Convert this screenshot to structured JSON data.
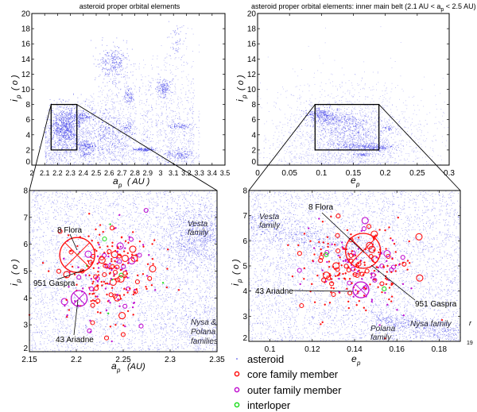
{
  "chart_data": [
    {
      "type": "scatter",
      "title": "asteroid proper orbital elements",
      "xlabel": "a_p ( AU )",
      "xlabel_main": "a",
      "xlabel_sub": "p",
      "xlabel_unit": "( AU )",
      "ylabel_main": "i",
      "ylabel_sub": "p",
      "ylabel_unit": "( o )",
      "xlim": [
        2,
        3.5
      ],
      "ylim": [
        0,
        20
      ],
      "xticks": [
        "2",
        "2.1",
        "2.2",
        "2.3",
        "2.4",
        "2.5",
        "2.6",
        "2.7",
        "2.8",
        "2.9",
        "3",
        "3.1",
        "3.2",
        "3.3",
        "3.4",
        "3.5"
      ],
      "yticks": [
        "0",
        "2",
        "4",
        "6",
        "8",
        "10",
        "12",
        "14",
        "16",
        "18",
        "20"
      ],
      "zoom_box": {
        "x": [
          2.15,
          2.35
        ],
        "y": [
          2,
          8
        ]
      },
      "series_color": "#2a2ae6"
    },
    {
      "type": "scatter",
      "title": "asteroid proper orbital elements: inner main belt (2.1 AU < a",
      "title_sub": "p",
      "title_end": " < 2.5 AU)",
      "xlabel_main": "e",
      "xlabel_sub": "p",
      "ylabel_main": "i",
      "ylabel_sub": "p",
      "ylabel_unit": "( o )",
      "xlim": [
        0,
        0.3
      ],
      "ylim": [
        0,
        20
      ],
      "xticks": [
        "0",
        "0.05",
        "0.1",
        "0.15",
        "0.2",
        "0.25",
        "0.3"
      ],
      "yticks": [
        "0",
        "2",
        "4",
        "6",
        "8",
        "10",
        "12",
        "14",
        "16",
        "18",
        "20"
      ],
      "zoom_box": {
        "x": [
          0.09,
          0.19
        ],
        "y": [
          2,
          8
        ]
      }
    },
    {
      "type": "scatter",
      "xlabel_main": "a",
      "xlabel_sub": "p",
      "xlabel_unit": "(AU)",
      "ylabel_main": "i",
      "ylabel_sub": "p",
      "ylabel_unit": "( o )",
      "xlim": [
        2.15,
        2.35
      ],
      "ylim": [
        2,
        8
      ],
      "xticks": [
        "2.15",
        "2.2",
        "2.25",
        "2.3",
        "2.35"
      ],
      "yticks": [
        "2",
        "3",
        "4",
        "5",
        "6",
        "7",
        "8"
      ],
      "annotations": [
        {
          "label": "8 Flora",
          "x": 2.201,
          "y": 5.6,
          "marker": "core family member"
        },
        {
          "label": "951 Gaspra",
          "x": 2.21,
          "y": 5.05,
          "marker": "core family member"
        },
        {
          "label": "43 Ariadne",
          "x": 2.203,
          "y": 3.98,
          "marker": "outer family member"
        }
      ],
      "family_labels": [
        "Vesta",
        "family",
        "Nysa &",
        "Polana",
        "families"
      ]
    },
    {
      "type": "scatter",
      "xlabel_main": "e",
      "xlabel_sub": "p",
      "ylabel_main": "i",
      "ylabel_sub": "p",
      "ylabel_unit": "( o )",
      "xlim": [
        0.09,
        0.19
      ],
      "ylim": [
        2,
        8
      ],
      "xticks": [
        "0.1",
        "0.12",
        "0.14",
        "0.16",
        "0.18"
      ],
      "yticks": [
        "2",
        "3",
        "4",
        "5",
        "6",
        "7",
        "8"
      ],
      "annotations": [
        {
          "label": "8 Flora",
          "x": 0.144,
          "y": 5.6,
          "marker": "core family member"
        },
        {
          "label": "951 Gaspra",
          "x": 0.146,
          "y": 5.1,
          "marker": "core family member"
        },
        {
          "label": "43 Ariadne",
          "x": 0.143,
          "y": 4.05,
          "marker": "outer family member"
        }
      ],
      "family_labels": [
        "Vesta",
        "family",
        "Polana",
        "family",
        "Nysa family"
      ],
      "edge_fragments": [
        "r",
        "19"
      ]
    }
  ],
  "legend": {
    "placement": "bottom",
    "items": [
      {
        "label": "asteroid",
        "color": "#2a2ae6",
        "marker": "dot"
      },
      {
        "label": "core family member",
        "color": "#ff1010",
        "marker": "circle"
      },
      {
        "label": "outer family member",
        "color": "#c010d0",
        "marker": "circle"
      },
      {
        "label": "interloper",
        "color": "#22dd22",
        "marker": "circle"
      }
    ]
  }
}
